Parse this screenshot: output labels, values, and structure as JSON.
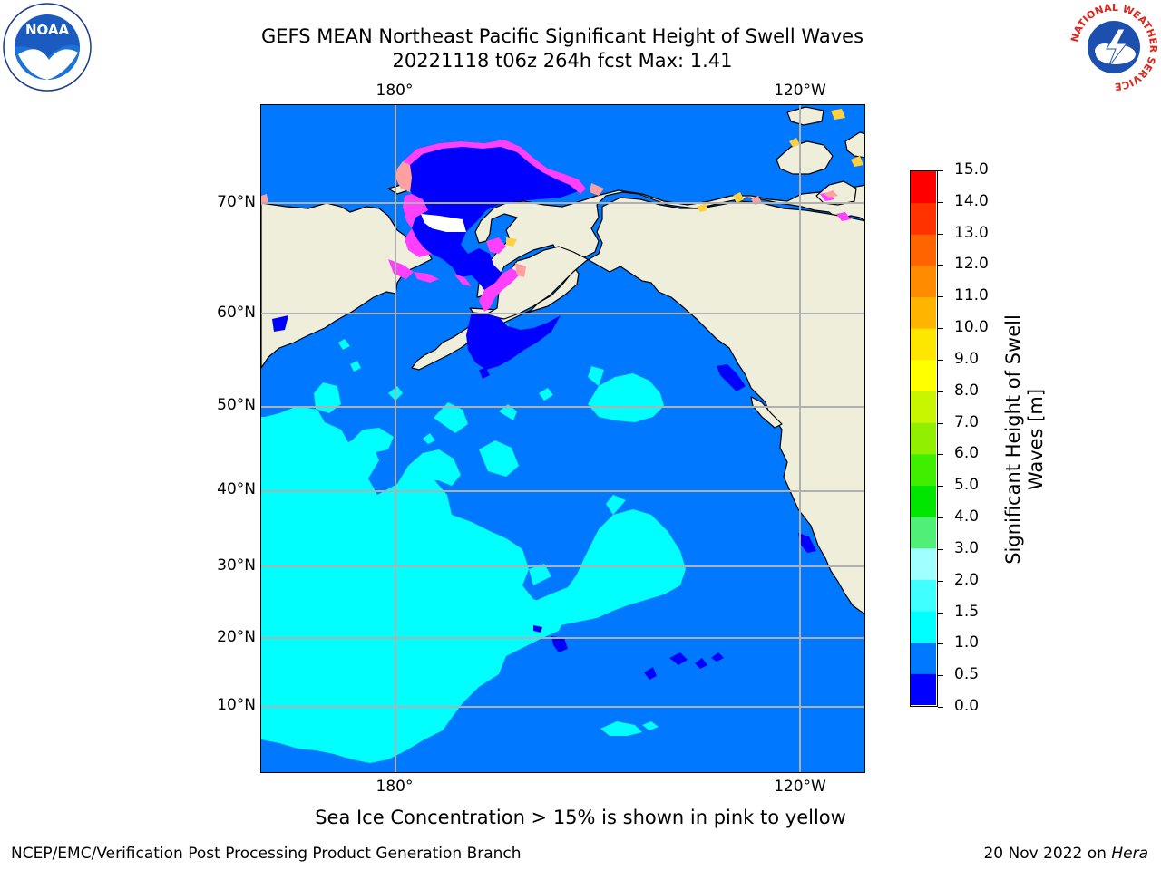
{
  "title": {
    "line1": "GEFS MEAN Northeast Pacific Significant Height of Swell Waves",
    "line2": "20221118 t06z 264h fcst   Max: 1.41"
  },
  "axes": {
    "lon_ticks": [
      "180°",
      "120°W"
    ],
    "lat_ticks": [
      "70°N",
      "60°N",
      "50°N",
      "40°N",
      "30°N",
      "20°N",
      "10°N"
    ]
  },
  "colorbar": {
    "label_line1": "Significant Height of Swell",
    "label_line2": "Waves [m]",
    "levels": [
      "0.0",
      "0.5",
      "1.0",
      "1.5",
      "2.0",
      "3.0",
      "4.0",
      "5.0",
      "6.0",
      "7.0",
      "8.0",
      "9.0",
      "10.0",
      "11.0",
      "12.0",
      "13.0",
      "14.0",
      "15.0"
    ],
    "colors": [
      "#0000ff",
      "#0078ff",
      "#00ffff",
      "#40ffff",
      "#a0ffff",
      "#50f078",
      "#00e600",
      "#40ee00",
      "#90f000",
      "#c8f500",
      "#ffff00",
      "#ffe600",
      "#ffb400",
      "#ff8c00",
      "#ff6400",
      "#ff3200",
      "#ff0000"
    ]
  },
  "map_colors": {
    "land": "#efeedb",
    "ocean_0_5_1_0": "#0078ff",
    "ocean_1_0_1_5": "#00ffff",
    "ocean_0_0_0_5": "#0000ff",
    "sea_ice": [
      "#ff40ff",
      "#ffa0a0",
      "#ffd040"
    ],
    "grid": "#b0b0b0",
    "coast": "#000000"
  },
  "caption": "Sea Ice Concentration > 15% is shown in pink to yellow",
  "footer": {
    "left": "NCEP/EMC/Verification Post Processing Product Generation Branch",
    "right_prefix": "20 Nov 2022 on ",
    "right_machine": "Hera"
  },
  "logos": {
    "left_icon": "noaa-logo",
    "left_text": "NOAA",
    "right_icon": "nws-logo",
    "right_text": "NATIONAL WEATHER SERVICE"
  }
}
